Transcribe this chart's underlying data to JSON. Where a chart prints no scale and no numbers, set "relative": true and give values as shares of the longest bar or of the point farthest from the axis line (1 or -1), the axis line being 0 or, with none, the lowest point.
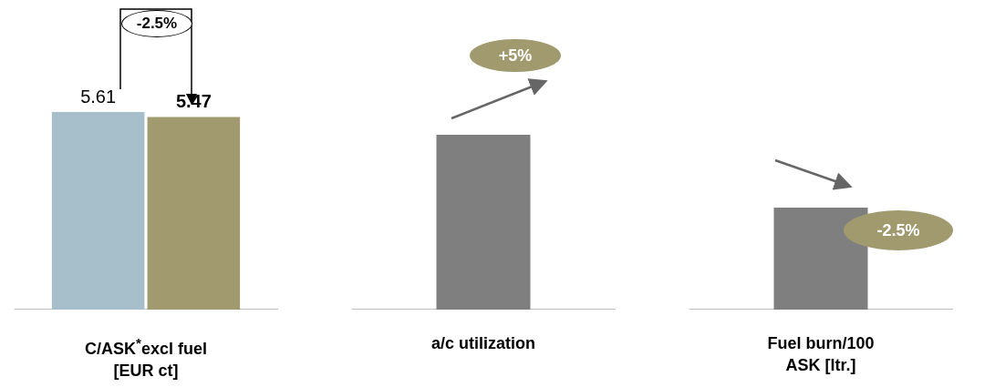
{
  "chart_data": [
    {
      "type": "bar",
      "categories": [
        null,
        null
      ],
      "values": [
        5.61,
        5.47
      ],
      "colors": [
        "#a7bfcb",
        "#a09a6e"
      ],
      "data_labels": true,
      "xlabel": "C/ASK$^{*}$excl fuel [EUR ct]",
      "annotations": [
        "-2.5%"
      ]
    },
    {
      "type": "bar",
      "relative": true,
      "categories": [
        null
      ],
      "values": [
        1
      ],
      "colors": [
        "#7f7f7f"
      ],
      "xlabel": "a/c utilization",
      "annotations": [
        "+5%"
      ]
    },
    {
      "type": "bar",
      "relative": true,
      "categories": [
        null
      ],
      "values": [
        1
      ],
      "colors": [
        "#7f7f7f"
      ],
      "xlabel": "Fuel burn/100 ASK [ltr.]",
      "annotations": [
        "-2.5%"
      ]
    }
  ]
}
